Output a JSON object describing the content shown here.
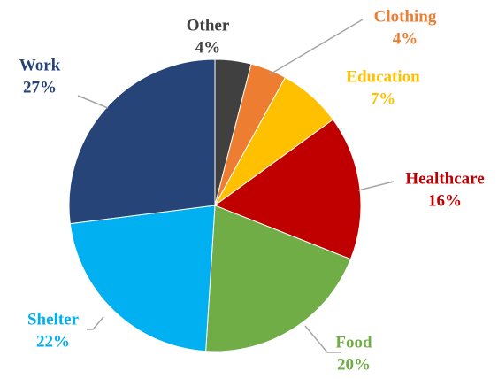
{
  "chart_data": {
    "type": "pie",
    "categories": [
      "Other",
      "Clothing",
      "Education",
      "Healthcare",
      "Food",
      "Shelter",
      "Work"
    ],
    "values": [
      4,
      4,
      7,
      16,
      20,
      22,
      27
    ],
    "value_labels": [
      "4%",
      "4%",
      "7%",
      "16%",
      "20%",
      "22%",
      "27%"
    ],
    "colors": [
      "#404040",
      "#ed7d31",
      "#ffc000",
      "#c00000",
      "#70ad47",
      "#00b0f0",
      "#264478"
    ]
  }
}
